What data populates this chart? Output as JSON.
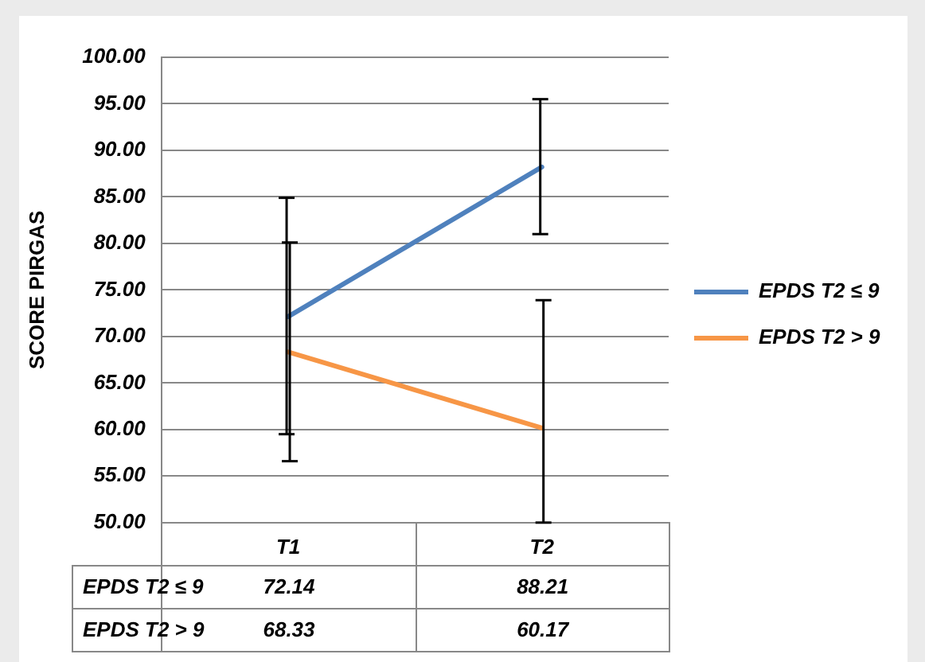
{
  "chart_data": {
    "type": "line",
    "ylabel": "SCORE PIRGAS",
    "categories": [
      "T1",
      "T2"
    ],
    "series": [
      {
        "name": "EPDS T2 ≤ 9",
        "color": "#4f81bd",
        "values": [
          72.14,
          88.21
        ],
        "errors": [
          [
            59.5,
            84.9
          ],
          [
            81.0,
            95.5
          ]
        ]
      },
      {
        "name": "EPDS T2 > 9",
        "color": "#f79646",
        "values": [
          68.33,
          60.17
        ],
        "errors": [
          [
            56.6,
            80.1
          ],
          [
            50,
            73.9
          ]
        ]
      }
    ],
    "ylim": [
      50,
      100
    ],
    "yticks": [
      {
        "value": 50,
        "label": "50.00"
      },
      {
        "value": 55,
        "label": "55.00"
      },
      {
        "value": 60,
        "label": "60.00"
      },
      {
        "value": 65,
        "label": "65.00"
      },
      {
        "value": 70,
        "label": "70.00"
      },
      {
        "value": 75,
        "label": "75.00"
      },
      {
        "value": 80,
        "label": "80.00"
      },
      {
        "value": 85,
        "label": "85.00"
      },
      {
        "value": 90,
        "label": "90.00"
      },
      {
        "value": 95,
        "label": "95.00"
      },
      {
        "value": 100,
        "label": "100.00"
      }
    ],
    "grid": "y",
    "legend": "right",
    "marker": "none",
    "line_style": "solid",
    "data_labels": true
  }
}
